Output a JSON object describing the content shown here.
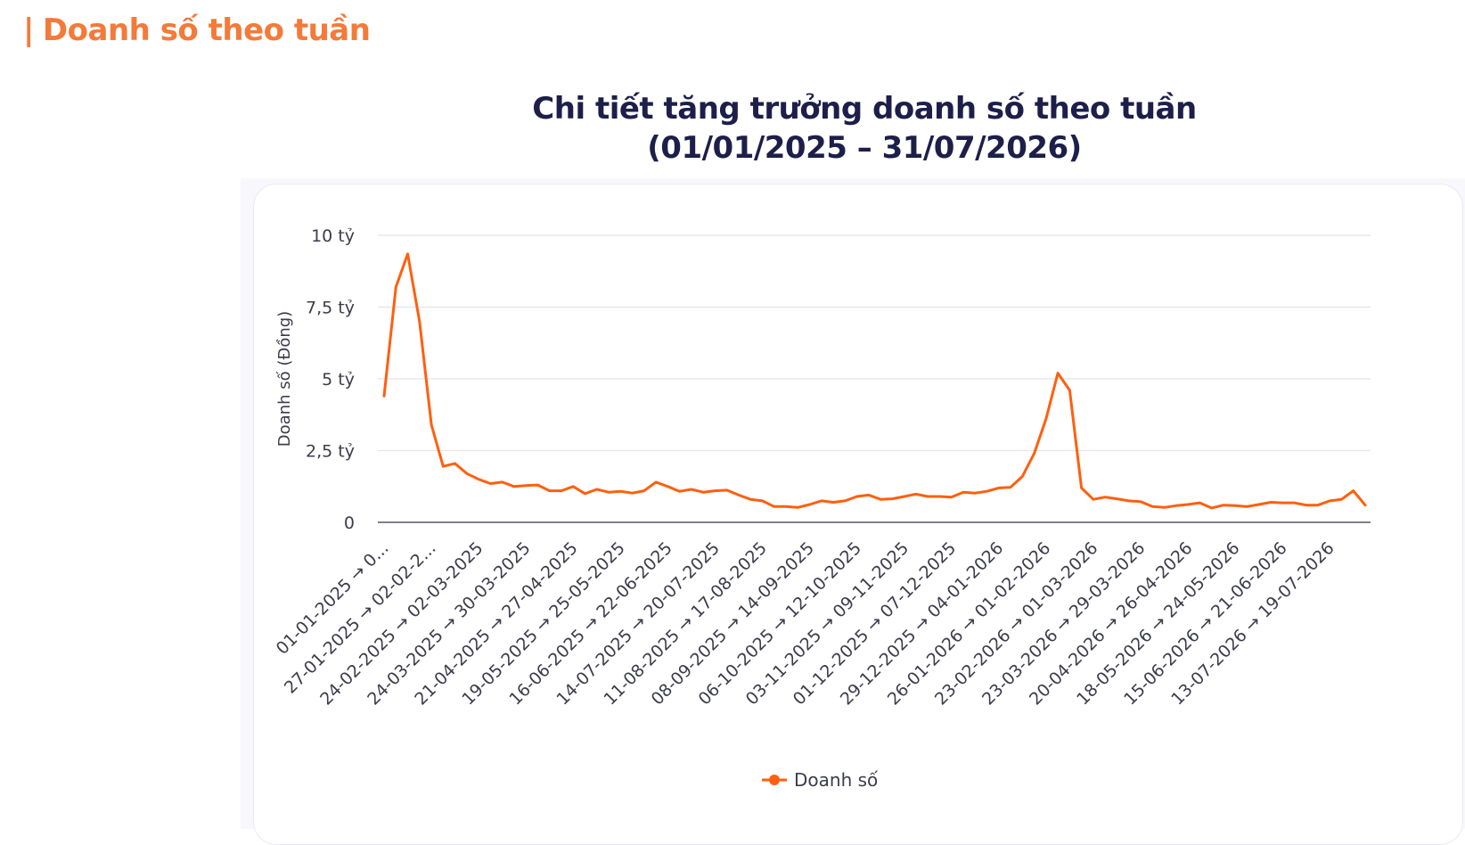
{
  "section": {
    "bar": "|",
    "heading": "Doanh số theo tuần"
  },
  "colors": {
    "accent": "#f47a3a",
    "series": "#ff5f0e",
    "title": "#1d1f4a",
    "grid": "#e4e4ea",
    "axis": "#555566"
  },
  "chart_data": {
    "type": "line",
    "title": "Chi tiết tăng trưởng doanh số theo tuần",
    "subtitle": "(01/01/2025 – 31/07/2026)",
    "xlabel": "",
    "ylabel": "Doanh số (Đồng)",
    "ylim": [
      0,
      10
    ],
    "y_unit": "tỷ",
    "y_ticks": [
      {
        "value": 0,
        "label": "0"
      },
      {
        "value": 2.5,
        "label": "2,5 tỷ"
      },
      {
        "value": 5,
        "label": "5 tỷ"
      },
      {
        "value": 7.5,
        "label": "7,5 tỷ"
      },
      {
        "value": 10,
        "label": "10 tỷ"
      }
    ],
    "grid": true,
    "legend_position": "bottom",
    "x_tick_labels": [
      {
        "index": 0,
        "label": "01-01-2025 → 0..."
      },
      {
        "index": 4,
        "label": "27-01-2025 → 02-02-2..."
      },
      {
        "index": 8,
        "label": "24-02-2025 → 02-03-2025"
      },
      {
        "index": 12,
        "label": "24-03-2025 → 30-03-2025"
      },
      {
        "index": 16,
        "label": "21-04-2025 → 27-04-2025"
      },
      {
        "index": 20,
        "label": "19-05-2025 → 25-05-2025"
      },
      {
        "index": 24,
        "label": "16-06-2025 → 22-06-2025"
      },
      {
        "index": 28,
        "label": "14-07-2025 → 20-07-2025"
      },
      {
        "index": 32,
        "label": "11-08-2025 → 17-08-2025"
      },
      {
        "index": 36,
        "label": "08-09-2025 → 14-09-2025"
      },
      {
        "index": 40,
        "label": "06-10-2025 → 12-10-2025"
      },
      {
        "index": 44,
        "label": "03-11-2025 → 09-11-2025"
      },
      {
        "index": 48,
        "label": "01-12-2025 → 07-12-2025"
      },
      {
        "index": 52,
        "label": "29-12-2025 → 04-01-2026"
      },
      {
        "index": 56,
        "label": "26-01-2026 → 01-02-2026"
      },
      {
        "index": 60,
        "label": "23-02-2026 → 01-03-2026"
      },
      {
        "index": 64,
        "label": "23-03-2026 → 29-03-2026"
      },
      {
        "index": 68,
        "label": "20-04-2026 → 26-04-2026"
      },
      {
        "index": 72,
        "label": "18-05-2026 → 24-05-2026"
      },
      {
        "index": 76,
        "label": "15-06-2026 → 21-06-2026"
      },
      {
        "index": 80,
        "label": "13-07-2026 → 19-07-2026"
      }
    ],
    "series": [
      {
        "name": "Doanh số",
        "values": [
          4.4,
          8.2,
          9.35,
          7.0,
          3.4,
          1.95,
          2.05,
          1.7,
          1.5,
          1.35,
          1.4,
          1.25,
          1.28,
          1.3,
          1.1,
          1.1,
          1.25,
          1.0,
          1.15,
          1.05,
          1.08,
          1.02,
          1.1,
          1.4,
          1.25,
          1.08,
          1.15,
          1.05,
          1.1,
          1.12,
          0.95,
          0.8,
          0.75,
          0.55,
          0.55,
          0.52,
          0.62,
          0.75,
          0.7,
          0.75,
          0.9,
          0.95,
          0.8,
          0.82,
          0.9,
          0.98,
          0.9,
          0.9,
          0.88,
          1.05,
          1.02,
          1.08,
          1.2,
          1.22,
          1.6,
          2.4,
          3.6,
          5.2,
          4.6,
          1.2,
          0.8,
          0.88,
          0.82,
          0.75,
          0.72,
          0.55,
          0.52,
          0.58,
          0.62,
          0.68,
          0.5,
          0.6,
          0.58,
          0.55,
          0.62,
          0.7,
          0.68,
          0.68,
          0.6,
          0.6,
          0.75,
          0.8,
          1.1,
          0.6
        ]
      }
    ]
  }
}
